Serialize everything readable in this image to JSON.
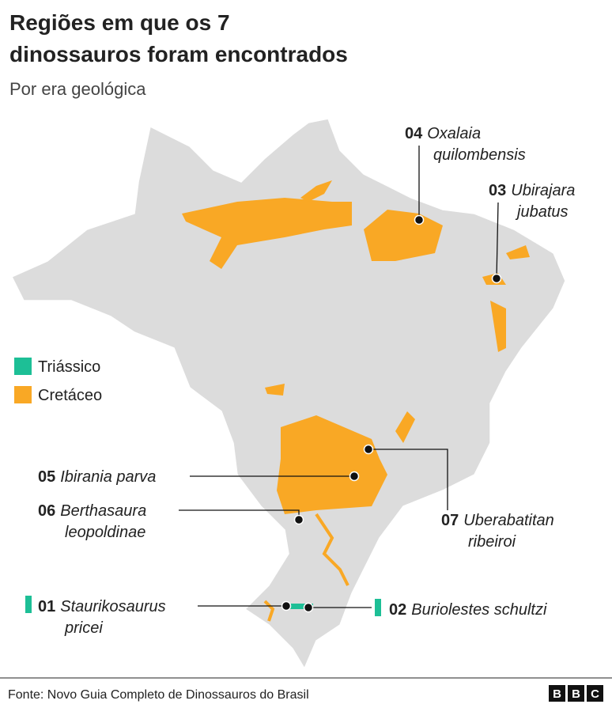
{
  "header": {
    "title": [
      "Regiões em que os 7",
      "dinossauros foram encontrados"
    ],
    "subtitle": "Por era geológica"
  },
  "legend": [
    {
      "label": "Triássico",
      "color": "#1dbf96"
    },
    {
      "label": "Cretáceo",
      "color": "#f9a825"
    }
  ],
  "markers": [
    {
      "number": "04",
      "name": [
        "Oxalaia",
        "quilombensis"
      ]
    },
    {
      "number": "03",
      "name": [
        "Ubirajara",
        "jubatus"
      ]
    },
    {
      "number": "05",
      "name": [
        "Ibirania parva"
      ]
    },
    {
      "number": "06",
      "name": [
        "Berthasaura",
        "leopoldinae"
      ]
    },
    {
      "number": "07",
      "name": [
        "Uberabatitan",
        "ribeiroi"
      ]
    },
    {
      "number": "01",
      "name": [
        "Staurikosaurus",
        "pricei"
      ]
    },
    {
      "number": "02",
      "name": [
        "Buriolestes schultzi"
      ]
    }
  ],
  "footer": {
    "source": "Fonte: Novo Guia Completo de Dinossauros do Brasil",
    "logo": [
      "B",
      "B",
      "C"
    ]
  }
}
